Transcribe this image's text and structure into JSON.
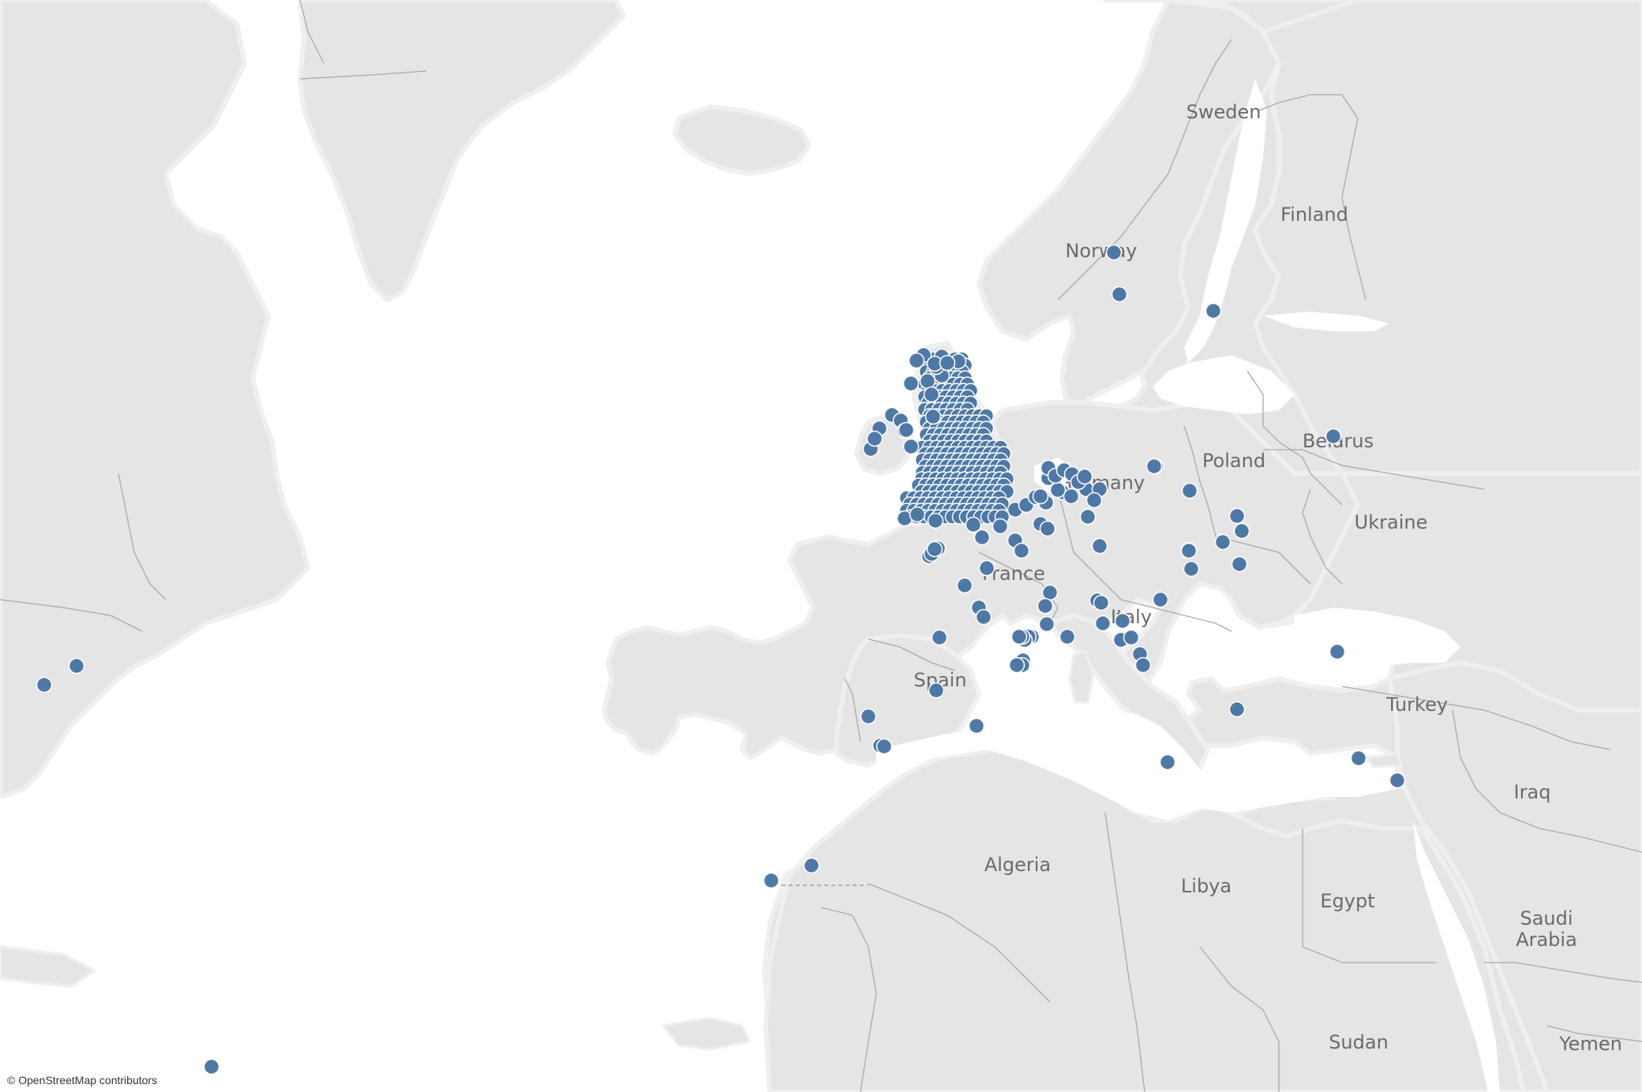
{
  "map": {
    "attribution": "© OpenStreetMap contributors",
    "colors": {
      "ocean": "#ffffff",
      "land": "#e5e5e5",
      "border": "#a9a9a9",
      "coast_halo": "#efefef",
      "marker": "#4e79a7",
      "marker_stroke": "#ffffff",
      "label": "#6b6b6b"
    },
    "labels": [
      {
        "id": "sweden",
        "text": "Sweden"
      },
      {
        "id": "finland",
        "text": "Finland"
      },
      {
        "id": "norway",
        "text": "Norway"
      },
      {
        "id": "poland",
        "text": "Poland"
      },
      {
        "id": "belarus",
        "text": "Belarus"
      },
      {
        "id": "germany",
        "text": "Germany"
      },
      {
        "id": "ukraine",
        "text": "Ukraine"
      },
      {
        "id": "france",
        "text": "France"
      },
      {
        "id": "italy",
        "text": "Italy"
      },
      {
        "id": "spain",
        "text": "Spain"
      },
      {
        "id": "turkey",
        "text": "Turkey"
      },
      {
        "id": "iraq",
        "text": "Iraq"
      },
      {
        "id": "algeria",
        "text": "Algeria"
      },
      {
        "id": "libya",
        "text": "Libya"
      },
      {
        "id": "egypt",
        "text": "Egypt"
      },
      {
        "id": "saudi-arabia",
        "text": "Saudi Arabia"
      },
      {
        "id": "sudan",
        "text": "Sudan"
      },
      {
        "id": "yemen",
        "text": "Yemen"
      }
    ],
    "marker_icon": "filled-circle"
  }
}
